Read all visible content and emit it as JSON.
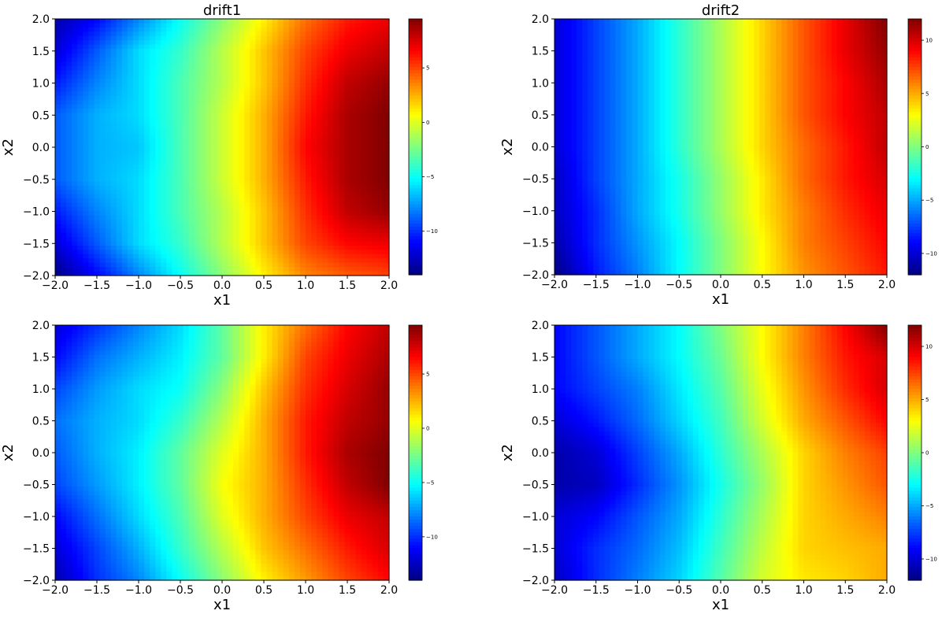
{
  "chart_data": [
    {
      "type": "heatmap",
      "title": "drift1",
      "xlabel": "x1",
      "ylabel": "x2",
      "xlim": [
        -2.0,
        2.0
      ],
      "ylim": [
        -2.0,
        2.0
      ],
      "xticks": [
        "−2.0",
        "−1.5",
        "−1.0",
        "−0.5",
        "0.0",
        "0.5",
        "1.0",
        "1.5",
        "2.0"
      ],
      "yticks": [
        "−2.0",
        "−1.5",
        "−1.0",
        "−0.5",
        "0.0",
        "0.5",
        "1.0",
        "1.5",
        "2.0"
      ],
      "colormap": "jet",
      "vmin": -14,
      "vmax": 9.5,
      "colorbar_ticks": [
        5,
        0,
        -5,
        -10
      ],
      "colorbar_labels": [
        "5",
        "0",
        "−5",
        "−10"
      ],
      "x_grid": [
        -2.0,
        -1.5,
        -1.0,
        -0.5,
        0.0,
        0.5,
        1.0,
        1.5,
        2.0
      ],
      "y_grid": [
        2.0,
        1.5,
        1.0,
        0.5,
        0.0,
        -0.5,
        -1.0,
        -1.5,
        -2.0
      ],
      "z": [
        [
          -13,
          -11,
          -8,
          -5,
          -2,
          1,
          4,
          6,
          7
        ],
        [
          -12,
          -9,
          -6,
          -4,
          -1,
          2,
          5,
          7,
          8
        ],
        [
          -10.5,
          -8,
          -6,
          -3.5,
          -1,
          2,
          5.5,
          8,
          9
        ],
        [
          -9,
          -7,
          -6,
          -3.5,
          -0.5,
          2.5,
          6,
          8.5,
          9.5
        ],
        [
          -9,
          -7,
          -6.5,
          -3.5,
          -0.5,
          2.5,
          6.5,
          8.5,
          9.5
        ],
        [
          -9,
          -7,
          -6,
          -3.5,
          -0.5,
          2.5,
          6,
          8.5,
          9.5
        ],
        [
          -10.5,
          -8,
          -6,
          -3.5,
          -1,
          2,
          5.5,
          8,
          9
        ],
        [
          -12,
          -9,
          -6,
          -4,
          -1,
          2,
          5,
          6.5,
          7
        ],
        [
          -14,
          -11,
          -8,
          -5,
          -2,
          1,
          3.5,
          4.5,
          5
        ]
      ]
    },
    {
      "type": "heatmap",
      "title": "drift2",
      "xlabel": "x1",
      "ylabel": "x2",
      "xlim": [
        -2.0,
        2.0
      ],
      "ylim": [
        -2.0,
        2.0
      ],
      "xticks": [
        "−2.0",
        "−1.5",
        "−1.0",
        "−0.5",
        "0.0",
        "0.5",
        "1.0",
        "1.5",
        "2.0"
      ],
      "yticks": [
        "−2.0",
        "−1.5",
        "−1.0",
        "−0.5",
        "0.0",
        "0.5",
        "1.0",
        "1.5",
        "2.0"
      ],
      "colormap": "jet",
      "vmin": -12,
      "vmax": 12,
      "colorbar_ticks": [
        10,
        5,
        0,
        -5,
        -10
      ],
      "colorbar_labels": [
        "10",
        "5",
        "0",
        "−5",
        "−10"
      ],
      "x_grid": [
        -2.0,
        -1.5,
        -1.0,
        -0.5,
        0.0,
        0.5,
        1.0,
        1.5,
        2.0
      ],
      "y_grid": [
        2.0,
        1.5,
        1.0,
        0.5,
        0.0,
        -0.5,
        -1.0,
        -1.5,
        -2.0
      ],
      "z": [
        [
          -10,
          -7.5,
          -5,
          -2,
          1,
          4,
          7,
          9.5,
          12
        ],
        [
          -10,
          -7.5,
          -5,
          -2,
          1,
          4,
          7,
          9.5,
          11.5
        ],
        [
          -10,
          -7.5,
          -5,
          -2,
          1,
          4,
          7,
          9,
          11
        ],
        [
          -10,
          -7.5,
          -5,
          -2,
          1,
          4,
          7,
          9,
          10.5
        ],
        [
          -10,
          -7.5,
          -5,
          -2,
          1,
          4,
          6.5,
          8.5,
          10.5
        ],
        [
          -10.5,
          -7.5,
          -5,
          -2.5,
          0.5,
          3.5,
          6.5,
          8.5,
          10
        ],
        [
          -10.5,
          -8,
          -5,
          -2.5,
          0.5,
          3.5,
          6,
          8,
          9.5
        ],
        [
          -11,
          -8,
          -5.5,
          -3,
          0,
          3,
          6,
          7.5,
          9
        ],
        [
          -12,
          -8.5,
          -6,
          -3,
          0,
          3,
          5.5,
          7,
          8.5
        ]
      ]
    },
    {
      "type": "heatmap",
      "title": "",
      "xlabel": "x1",
      "ylabel": "x2",
      "xlim": [
        -2.0,
        2.0
      ],
      "ylim": [
        -2.0,
        2.0
      ],
      "xticks": [
        "−2.0",
        "−1.5",
        "−1.0",
        "−0.5",
        "0.0",
        "0.5",
        "1.0",
        "1.5",
        "2.0"
      ],
      "yticks": [
        "−2.0",
        "−1.5",
        "−1.0",
        "−0.5",
        "0.0",
        "0.5",
        "1.0",
        "1.5",
        "2.0"
      ],
      "colormap": "jet",
      "vmin": -14,
      "vmax": 9.5,
      "colorbar_ticks": [
        5,
        0,
        -5,
        -10
      ],
      "colorbar_labels": [
        "5",
        "0",
        "−5",
        "−10"
      ],
      "x_grid": [
        -2.0,
        -1.5,
        -1.0,
        -0.5,
        0.0,
        0.5,
        1.0,
        1.5,
        2.0
      ],
      "y_grid": [
        2.0,
        1.5,
        1.0,
        0.5,
        0.0,
        -0.5,
        -1.0,
        -1.5,
        -2.0
      ],
      "z": [
        [
          -12,
          -10,
          -8,
          -6,
          -3,
          1,
          4,
          6.5,
          8
        ],
        [
          -11,
          -8.5,
          -7,
          -5.5,
          -3,
          1,
          5,
          7,
          8.5
        ],
        [
          -9.5,
          -7.5,
          -6,
          -5,
          -2,
          2,
          5.5,
          7.5,
          9
        ],
        [
          -8.5,
          -7,
          -6,
          -4,
          -1,
          2.5,
          6,
          8,
          9
        ],
        [
          -9,
          -7,
          -5.5,
          -3,
          0,
          2.5,
          6,
          8.5,
          9.5
        ],
        [
          -9.5,
          -7.5,
          -5.5,
          -3,
          0.5,
          2.5,
          5.5,
          8,
          9.5
        ],
        [
          -11,
          -8.5,
          -6,
          -3.5,
          0,
          2.5,
          5,
          7,
          8
        ],
        [
          -12,
          -9.5,
          -7,
          -4,
          -1,
          2,
          4,
          6,
          7.5
        ],
        [
          -13,
          -10,
          -8,
          -5,
          -2,
          1,
          3,
          5,
          6.5
        ]
      ]
    },
    {
      "type": "heatmap",
      "title": "",
      "xlabel": "x1",
      "ylabel": "x2",
      "xlim": [
        -2.0,
        2.0
      ],
      "ylim": [
        -2.0,
        2.0
      ],
      "xticks": [
        "−2.0",
        "−1.5",
        "−1.0",
        "−0.5",
        "0.0",
        "0.5",
        "1.0",
        "1.5",
        "2.0"
      ],
      "yticks": [
        "−2.0",
        "−1.5",
        "−1.0",
        "−0.5",
        "0.0",
        "0.5",
        "1.0",
        "1.5",
        "2.0"
      ],
      "colormap": "jet",
      "vmin": -12,
      "vmax": 12,
      "colorbar_ticks": [
        10,
        5,
        0,
        -5,
        -10
      ],
      "colorbar_labels": [
        "10",
        "5",
        "0",
        "−5",
        "−10"
      ],
      "x_grid": [
        -2.0,
        -1.5,
        -1.0,
        -0.5,
        0.0,
        0.5,
        1.0,
        1.5,
        2.0
      ],
      "y_grid": [
        2.0,
        1.5,
        1.0,
        0.5,
        0.0,
        -0.5,
        -1.0,
        -1.5,
        -2.0
      ],
      "z": [
        [
          -9,
          -7,
          -5,
          -3,
          0,
          3,
          6,
          9,
          12
        ],
        [
          -9,
          -7,
          -5,
          -3,
          -0.5,
          3,
          6,
          8.5,
          10
        ],
        [
          -9,
          -7.5,
          -6,
          -3.5,
          -1,
          2.5,
          5.5,
          8,
          10
        ],
        [
          -10,
          -8.5,
          -6.5,
          -4,
          -1.5,
          2,
          5,
          7,
          9
        ],
        [
          -11,
          -10,
          -7.5,
          -5,
          -2,
          1,
          4,
          6,
          7.5
        ],
        [
          -11,
          -10.5,
          -8,
          -5.5,
          -2.5,
          0.5,
          4,
          5.5,
          7
        ],
        [
          -10,
          -9,
          -7,
          -5,
          -2,
          1,
          4,
          5,
          6
        ],
        [
          -10,
          -8,
          -6.5,
          -4.5,
          -1.5,
          1.5,
          4,
          4.5,
          5
        ],
        [
          -10.5,
          -8,
          -6,
          -4,
          -1,
          2,
          3.5,
          4,
          5
        ]
      ]
    }
  ]
}
